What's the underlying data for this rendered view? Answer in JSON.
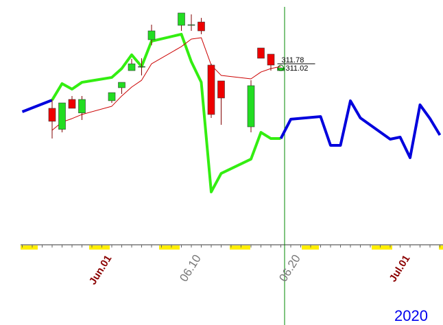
{
  "chart_data": {
    "type": "candlestick",
    "year_label": "2020",
    "categories": [
      null,
      null,
      null,
      null,
      null,
      null,
      null,
      null,
      null,
      "Jun.01",
      null,
      null,
      null,
      null,
      null,
      null,
      null,
      null,
      "06.10",
      null,
      null,
      null,
      null,
      null,
      null,
      null,
      null,
      null,
      "06.20",
      null,
      null,
      null,
      null,
      null,
      null,
      null,
      null,
      null,
      null,
      "Jul.01",
      null,
      null,
      null
    ],
    "ylim": [
      294.5,
      317.29
    ],
    "candles": {
      "x": [
        3,
        4,
        5,
        6,
        9,
        10,
        11,
        12,
        13,
        16,
        17,
        18,
        19,
        20,
        23,
        24,
        25,
        26
      ],
      "open": [
        307.29,
        305.35,
        308.11,
        306.86,
        307.99,
        309.19,
        310.77,
        311.15,
        313.62,
        314.95,
        315.01,
        315.26,
        311.28,
        309.82,
        305.58,
        312.86,
        312.29,
        310.77
      ],
      "high": [
        308.11,
        307.79,
        308.43,
        308.43,
        308.74,
        309.69,
        311.85,
        311.91,
        315.01,
        316.09,
        315.96,
        315.64,
        311.4,
        309.82,
        309.88,
        312.86,
        312.29,
        311.02
      ],
      "low": [
        304.5,
        305.07,
        307.29,
        306.21,
        307.79,
        308.62,
        310.77,
        310.33,
        313.11,
        314.44,
        314.44,
        314.13,
        306.4,
        305.77,
        305.07,
        311.91,
        310.77,
        310.77
      ],
      "close": [
        306.09,
        307.79,
        307.29,
        308.11,
        308.74,
        309.69,
        311.4,
        311.15,
        314.44,
        316.09,
        315.01,
        314.44,
        306.72,
        308.24,
        309.38,
        311.91,
        311.28,
        311.02
      ],
      "up_color": "#22dd22",
      "down_color": "#ee0000"
    },
    "series": [
      {
        "color": "#0000dd",
        "width": 4,
        "x": [
          0,
          3
        ],
        "values": [
          306.97,
          308.05
        ]
      },
      {
        "color": "#33ee11",
        "width": 4,
        "x": [
          3,
          4,
          5,
          6,
          9,
          10,
          11,
          12,
          13,
          16,
          17,
          18,
          19,
          20,
          23,
          24,
          25,
          26
        ],
        "values": [
          308.05,
          309.57,
          309.06,
          309.69,
          310.14,
          310.96,
          312.23,
          311.15,
          313.49,
          314.13,
          311.59,
          309.69,
          299.57,
          301.28,
          302.6,
          305.07,
          304.5,
          304.5
        ]
      },
      {
        "color": "#0000dd",
        "width": 4,
        "x": [
          26,
          27,
          30,
          31,
          32,
          33,
          34,
          37,
          38,
          39,
          40,
          41,
          42
        ],
        "values": [
          304.5,
          306.28,
          306.53,
          303.87,
          303.87,
          307.98,
          306.4,
          304.44,
          304.63,
          302.73,
          307.61,
          306.34,
          304.82
        ]
      },
      {
        "color": "#cc0000",
        "width": 1,
        "x": [
          3,
          4,
          5,
          6,
          9,
          10,
          11,
          12,
          13,
          16,
          17,
          18,
          19,
          20,
          23,
          24,
          25,
          26
        ],
        "values": [
          305.26,
          306.02,
          306.34,
          306.72,
          307.48,
          308.43,
          309.25,
          309.88,
          311.4,
          312.99,
          313.68,
          313.81,
          311.28,
          310.33,
          310.01,
          310.64,
          310.96,
          311.15
        ]
      }
    ],
    "price_labels": [
      311.78,
      311.02
    ]
  }
}
